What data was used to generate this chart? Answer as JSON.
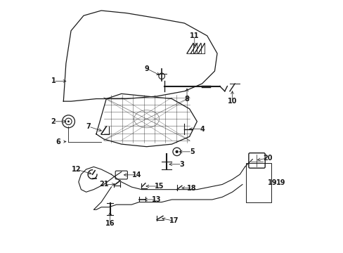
{
  "background_color": "#ffffff",
  "line_color": "#1a1a1a",
  "figsize": [
    4.89,
    3.6
  ],
  "dpi": 100,
  "hood_outline": {
    "x": [
      0.07,
      0.08,
      0.1,
      0.15,
      0.22,
      0.32,
      0.44,
      0.55,
      0.64,
      0.68,
      0.67,
      0.62,
      0.55,
      0.44,
      0.32,
      0.2,
      0.1,
      0.07
    ],
    "y": [
      0.6,
      0.75,
      0.88,
      0.94,
      0.96,
      0.95,
      0.93,
      0.91,
      0.86,
      0.79,
      0.72,
      0.67,
      0.64,
      0.62,
      0.61,
      0.61,
      0.6,
      0.6
    ]
  },
  "inner_panel": {
    "x": [
      0.2,
      0.24,
      0.3,
      0.4,
      0.5,
      0.57,
      0.6,
      0.57,
      0.5,
      0.4,
      0.3,
      0.23,
      0.2
    ],
    "y": [
      0.47,
      0.61,
      0.63,
      0.62,
      0.61,
      0.57,
      0.52,
      0.46,
      0.43,
      0.42,
      0.43,
      0.45,
      0.47
    ]
  },
  "label_fontsize": 7,
  "arrow_fontsize": 7
}
